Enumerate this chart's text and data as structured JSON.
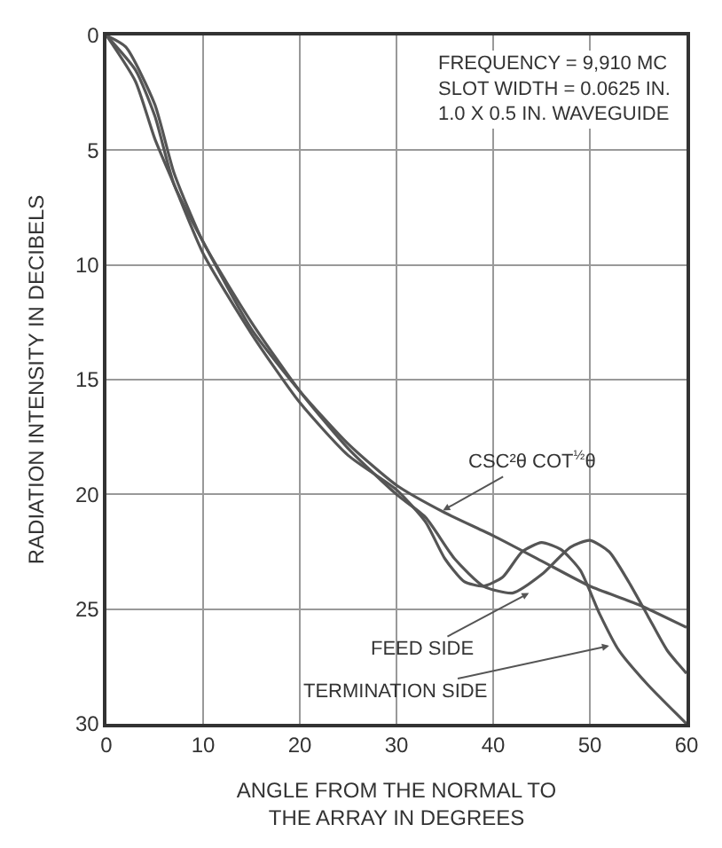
{
  "chart_data": {
    "type": "line",
    "xlabel": "ANGLE FROM THE NORMAL TO THE ARRAY IN DEGREES",
    "ylabel": "RADIATION INTENSITY IN DECIBELS",
    "xlim": [
      0,
      60
    ],
    "xticks": [
      0,
      10,
      20,
      30,
      40,
      50,
      60
    ],
    "ylim": [
      30,
      0
    ],
    "yticks": [
      0,
      5,
      10,
      15,
      20,
      25,
      30
    ],
    "grid": true,
    "line_style": "solid",
    "marker": "none",
    "series": [
      {
        "color": "#555555",
        "x": [
          0,
          2,
          5,
          7,
          10,
          15,
          20,
          25,
          30,
          33,
          36,
          39,
          42,
          45,
          48,
          50,
          52,
          54,
          56,
          58,
          60
        ],
        "values": [
          0,
          0.5,
          3,
          6,
          9,
          12.5,
          15.5,
          18,
          20,
          21,
          22.8,
          24,
          24.3,
          23.5,
          22.3,
          22,
          22.5,
          23.8,
          25.3,
          26.8,
          27.8
        ]
      },
      {
        "color": "#555555",
        "x": [
          0,
          3,
          5,
          7,
          10,
          15,
          20,
          25,
          30,
          33,
          35,
          37,
          39,
          41,
          43,
          45,
          47,
          49,
          51,
          53,
          56,
          60
        ],
        "values": [
          0,
          2,
          4.5,
          6.5,
          9.5,
          13,
          16,
          18.3,
          19.8,
          21.2,
          22.8,
          23.8,
          24,
          23.6,
          22.5,
          22.1,
          22.4,
          23.3,
          25.2,
          26.8,
          28.3,
          30
        ]
      },
      {
        "color": "#555555",
        "x": [
          0,
          3,
          5,
          7,
          10,
          15,
          20,
          25,
          30,
          35,
          40,
          45,
          50,
          55,
          60
        ],
        "values": [
          0,
          1.5,
          3.5,
          6.5,
          9,
          12.8,
          15.5,
          17.8,
          19.6,
          20.8,
          21.8,
          22.9,
          24,
          24.8,
          25.8
        ]
      }
    ],
    "annotations": [
      "FREQUENCY = 9,910 MC\nSLOT WIDTH = 0.0625 IN.\n1.0 X 0.5 IN. WAVEGUIDE",
      {
        "text": "CSC²θ COT$^{½}$θ",
        "x": 34.8,
        "y": 20.7
      },
      {
        "text": "FEED SIDE",
        "x": 43.7,
        "y": 24.3
      },
      {
        "text": "TERMINATION SIDE",
        "x": 52,
        "y": 26.6
      }
    ]
  }
}
